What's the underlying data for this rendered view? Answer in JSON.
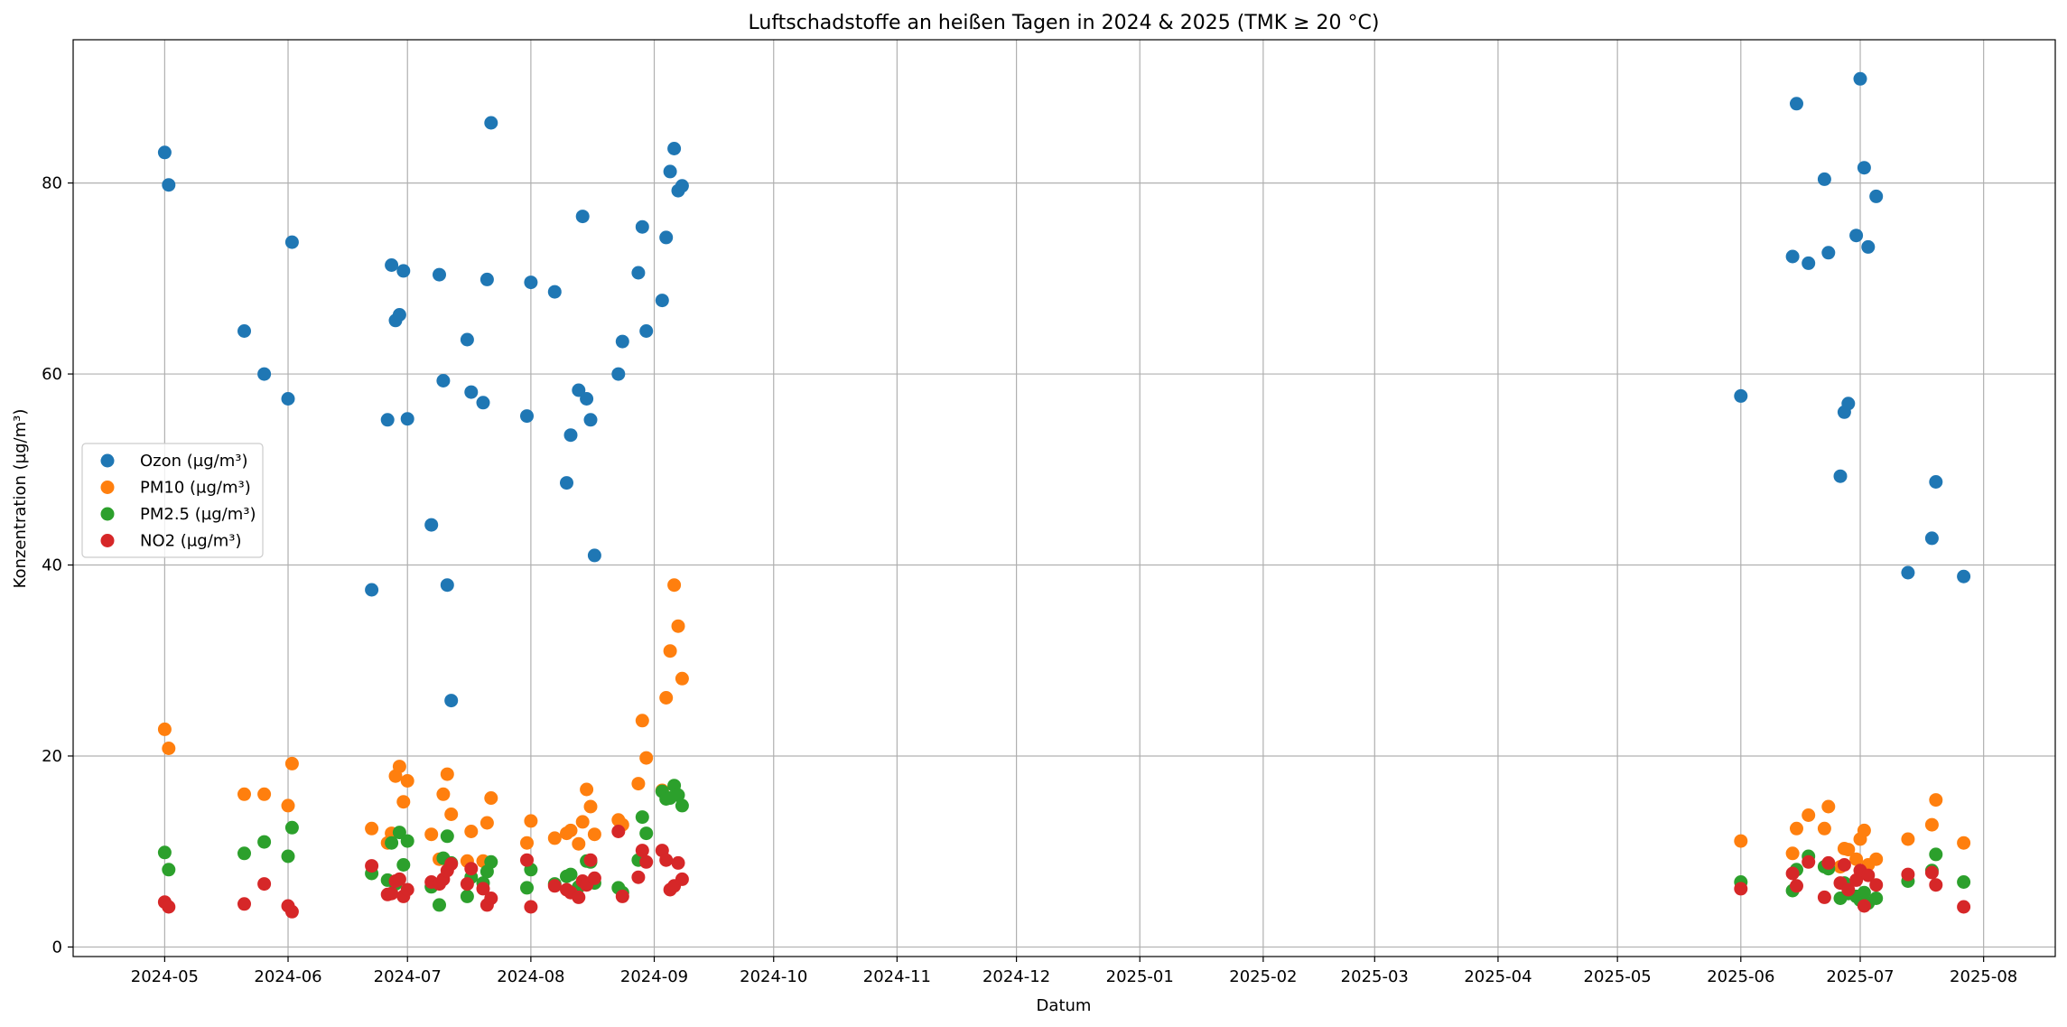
{
  "chart_data": {
    "type": "scatter",
    "title": "Luftschadstoffe an heißen Tagen in 2024 & 2025 (TMK ≥ 20 °C)",
    "xlabel": "Datum",
    "ylabel": "Konzentration (µg/m³)",
    "xlim": [
      "2024-04-08",
      "2025-08-19"
    ],
    "ylim": [
      -1,
      95
    ],
    "x_ticks": [
      "2024-05",
      "2024-06",
      "2024-07",
      "2024-08",
      "2024-09",
      "2024-10",
      "2024-11",
      "2024-12",
      "2025-01",
      "2025-02",
      "2025-03",
      "2025-04",
      "2025-05",
      "2025-06",
      "2025-07",
      "2025-08"
    ],
    "y_ticks": [
      0,
      20,
      40,
      60,
      80
    ],
    "grid": true,
    "legend_position": "center-left",
    "dates": [
      "2024-05-01",
      "2024-05-02",
      "2024-05-21",
      "2024-05-26",
      "2024-06-01",
      "2024-06-02",
      "2024-06-22",
      "2024-06-26",
      "2024-06-27",
      "2024-06-28",
      "2024-06-29",
      "2024-06-30",
      "2024-07-01",
      "2024-07-07",
      "2024-07-09",
      "2024-07-10",
      "2024-07-11",
      "2024-07-12",
      "2024-07-16",
      "2024-07-17",
      "2024-07-20",
      "2024-07-21",
      "2024-07-22",
      "2024-07-31",
      "2024-08-01",
      "2024-08-07",
      "2024-08-10",
      "2024-08-11",
      "2024-08-13",
      "2024-08-14",
      "2024-08-15",
      "2024-08-16",
      "2024-08-17",
      "2024-08-23",
      "2024-08-24",
      "2024-08-28",
      "2024-08-29",
      "2024-08-30",
      "2024-09-03",
      "2024-09-04",
      "2024-09-05",
      "2024-09-06",
      "2024-09-07",
      "2024-09-08",
      "2025-06-01",
      "2025-06-14",
      "2025-06-15",
      "2025-06-18",
      "2025-06-22",
      "2025-06-23",
      "2025-06-26",
      "2025-06-27",
      "2025-06-28",
      "2025-06-30",
      "2025-07-01",
      "2025-07-02",
      "2025-07-03",
      "2025-07-05",
      "2025-07-13",
      "2025-07-19",
      "2025-07-20",
      "2025-07-27"
    ],
    "series": [
      {
        "name": "Ozon (µg/m³)",
        "color": "#1f77b4",
        "values": [
          83.2,
          79.8,
          64.5,
          60.0,
          57.4,
          73.8,
          37.4,
          55.2,
          71.4,
          65.6,
          66.2,
          70.8,
          55.3,
          44.2,
          70.4,
          59.3,
          37.9,
          25.8,
          63.6,
          58.1,
          57.0,
          69.9,
          86.3,
          55.6,
          69.6,
          68.6,
          48.6,
          53.6,
          58.3,
          76.5,
          57.4,
          55.2,
          41.0,
          60.0,
          63.4,
          70.6,
          75.4,
          64.5,
          67.7,
          74.3,
          81.2,
          83.6,
          79.2,
          79.7,
          57.7,
          72.3,
          88.3,
          71.6,
          80.4,
          72.7,
          49.3,
          56.0,
          56.9,
          74.5,
          90.9,
          81.6,
          73.3,
          78.6,
          39.2,
          42.8,
          48.7,
          38.8
        ]
      },
      {
        "name": "PM10 (µg/m³)",
        "color": "#ff7f0e",
        "values": [
          22.8,
          20.8,
          16.0,
          16.0,
          14.8,
          19.2,
          12.4,
          10.9,
          11.9,
          17.9,
          18.9,
          15.2,
          17.4,
          11.8,
          9.2,
          16.0,
          18.1,
          13.9,
          9.0,
          12.1,
          9.0,
          13.0,
          15.6,
          10.9,
          13.2,
          11.4,
          11.9,
          12.2,
          10.8,
          13.1,
          16.5,
          14.7,
          11.8,
          13.3,
          12.8,
          17.1,
          23.7,
          19.8,
          16.4,
          26.1,
          31.0,
          37.9,
          33.6,
          28.1,
          11.1,
          9.8,
          12.4,
          13.8,
          12.4,
          14.7,
          8.4,
          10.3,
          10.2,
          9.2,
          11.3,
          12.2,
          8.6,
          9.2,
          11.3,
          12.8,
          15.4,
          10.9
        ]
      },
      {
        "name": "PM2.5 (µg/m³)",
        "color": "#2ca02c",
        "values": [
          9.9,
          8.1,
          9.8,
          11.0,
          9.5,
          12.5,
          7.7,
          7.0,
          10.9,
          6.6,
          12.0,
          8.6,
          11.1,
          6.3,
          4.4,
          9.3,
          11.6,
          8.8,
          5.3,
          7.3,
          6.7,
          7.9,
          8.9,
          6.2,
          8.1,
          6.6,
          7.4,
          7.6,
          6.3,
          6.7,
          9.0,
          8.9,
          6.7,
          6.2,
          5.7,
          9.1,
          13.6,
          11.9,
          16.3,
          15.5,
          15.6,
          16.9,
          15.9,
          14.8,
          6.8,
          5.9,
          8.1,
          9.5,
          8.4,
          8.2,
          5.1,
          6.7,
          5.6,
          5.3,
          4.9,
          5.7,
          4.6,
          5.1,
          6.9,
          8.0,
          9.7,
          6.8
        ]
      },
      {
        "name": "NO2 (µg/m³)",
        "color": "#d62728",
        "values": [
          4.7,
          4.2,
          4.5,
          6.6,
          4.3,
          3.7,
          8.5,
          5.5,
          5.6,
          6.9,
          7.1,
          5.3,
          6.0,
          6.8,
          6.6,
          7.1,
          8.0,
          8.7,
          6.6,
          8.2,
          6.1,
          4.4,
          5.1,
          9.1,
          4.2,
          6.4,
          6.0,
          5.7,
          5.2,
          6.9,
          6.5,
          9.1,
          7.2,
          12.1,
          5.3,
          7.3,
          10.1,
          8.9,
          10.1,
          9.1,
          6.0,
          6.4,
          8.8,
          7.1,
          6.1,
          7.7,
          6.4,
          8.9,
          5.2,
          8.8,
          6.7,
          8.6,
          6.0,
          7.0,
          8.0,
          4.3,
          7.5,
          6.5,
          7.6,
          7.8,
          6.5,
          4.2
        ]
      }
    ]
  }
}
